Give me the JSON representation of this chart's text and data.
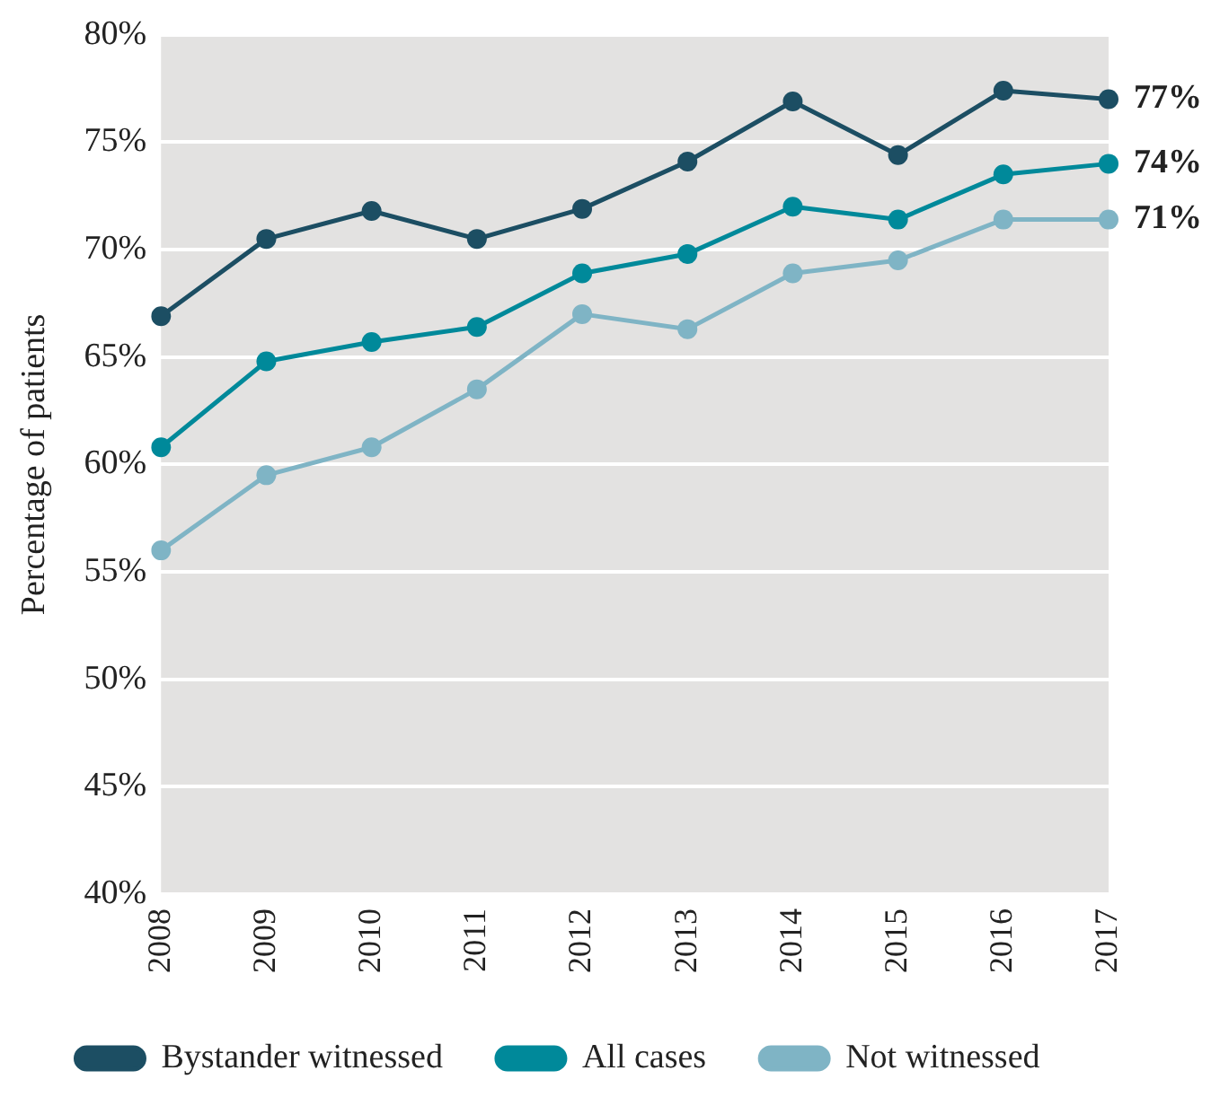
{
  "chart_data": {
    "type": "line",
    "ylabel": "Percentage of patients",
    "categories": [
      "2008",
      "2009",
      "2010",
      "2011",
      "2012",
      "2013",
      "2014",
      "2015",
      "2016",
      "2017"
    ],
    "series": [
      {
        "name": "Bystander witnessed",
        "color": "#1c4e63",
        "values": [
          66.9,
          70.5,
          71.8,
          70.5,
          71.9,
          74.1,
          76.9,
          74.4,
          77.4,
          77.0
        ],
        "value_labels": [
          null,
          null,
          null,
          null,
          null,
          null,
          null,
          null,
          null,
          "77%"
        ]
      },
      {
        "name": "All cases",
        "color": "#00899a",
        "values": [
          60.8,
          64.8,
          65.7,
          66.4,
          68.9,
          69.8,
          72.0,
          71.4,
          73.5,
          74.0
        ],
        "value_labels": [
          null,
          null,
          null,
          null,
          null,
          null,
          null,
          null,
          null,
          "74%"
        ]
      },
      {
        "name": "Not witnessed",
        "color": "#7fb4c5",
        "values": [
          56.0,
          59.5,
          60.8,
          63.5,
          67.0,
          66.3,
          68.9,
          69.5,
          71.4,
          71.4
        ],
        "value_labels": [
          null,
          null,
          null,
          null,
          null,
          null,
          null,
          null,
          null,
          "71%"
        ]
      }
    ],
    "ylim": [
      40,
      80
    ],
    "yticks": [
      {
        "value": 40,
        "label": "40%"
      },
      {
        "value": 45,
        "label": "45%"
      },
      {
        "value": 50,
        "label": "50%"
      },
      {
        "value": 55,
        "label": "55%"
      },
      {
        "value": 60,
        "label": "60%"
      },
      {
        "value": 65,
        "label": "65%"
      },
      {
        "value": 70,
        "label": "70%"
      },
      {
        "value": 75,
        "label": "75%"
      },
      {
        "value": 80,
        "label": "80%"
      }
    ],
    "grid": "y",
    "legend": "bottom",
    "marker": "circle",
    "line_style": "solid"
  }
}
